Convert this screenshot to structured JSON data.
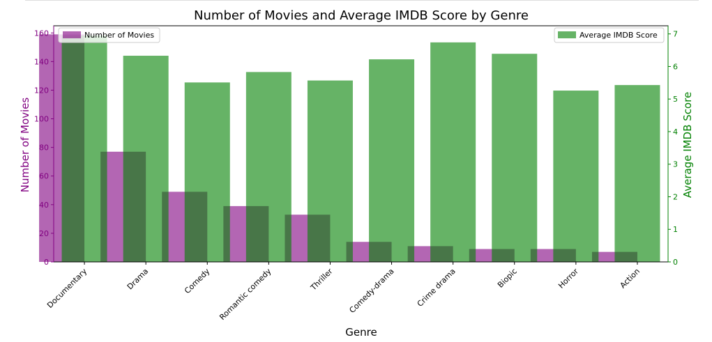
{
  "chart_data": {
    "type": "bar",
    "title": "Number of Movies and Average IMDB Score by Genre",
    "xlabel": "Genre",
    "categories": [
      "Documentary",
      "Drama",
      "Comedy",
      "Romantic comedy",
      "Thriller",
      "Comedy-drama",
      "Crime drama",
      "Biopic",
      "Horror",
      "Action"
    ],
    "left_axis": {
      "label": "Number of Movies",
      "ylim": [
        0,
        165
      ],
      "ticks": [
        0,
        20,
        40,
        60,
        80,
        100,
        120,
        140,
        160
      ],
      "color": "#800080"
    },
    "right_axis": {
      "label": "Average IMDB Score",
      "ylim": [
        0,
        7.25
      ],
      "ticks": [
        0,
        1,
        2,
        3,
        4,
        5,
        6,
        7
      ],
      "color": "#008000"
    },
    "series": [
      {
        "name": "Number of Movies",
        "axis": "left",
        "color": "#800080",
        "alpha": 0.6,
        "values": [
          159,
          77,
          49,
          39,
          33,
          14,
          11,
          9,
          9,
          7
        ]
      },
      {
        "name": "Average IMDB Score",
        "axis": "right",
        "color": "#008000",
        "alpha": 0.6,
        "values": [
          6.95,
          6.33,
          5.51,
          5.83,
          5.57,
          6.22,
          6.74,
          6.39,
          5.26,
          5.43
        ]
      }
    ],
    "legend": [
      {
        "label": "Number of Movies",
        "placement": "top-left"
      },
      {
        "label": "Average IMDB Score",
        "placement": "top-right"
      }
    ],
    "grid": false
  }
}
